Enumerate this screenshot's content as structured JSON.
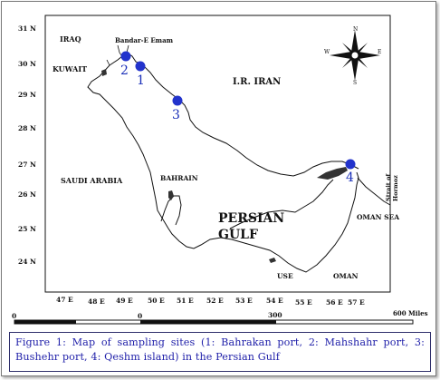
{
  "map": {
    "country_labels": {
      "iraq": "IRAQ",
      "kuwait": "KUWAIT",
      "iran": "I.R. IRAN",
      "saudi": "SAUDI ARABIA",
      "bahrain": "BAHRAIN",
      "persian_gulf_1": "PERSIAN",
      "persian_gulf_2": "GULF",
      "oman_sea": "OMAN SEA",
      "use": "USE",
      "oman": "OMAN",
      "bandar": "Bandar-E Emam",
      "strait_1": "Strait of",
      "strait_2": "Hormoz"
    },
    "lat_ticks": [
      "31 N",
      "30 N",
      "29 N",
      "28 N",
      "27 N",
      "26 N",
      "25 N",
      "24 N"
    ],
    "lon_ticks": [
      "47 E",
      "48 E",
      "49 E",
      "50 E",
      "51 E",
      "52 E",
      "53 E",
      "54 E",
      "55 E",
      "56 E",
      "57 E"
    ],
    "compass": {
      "n": "N",
      "s": "S",
      "e": "E",
      "w": "W"
    },
    "scale": {
      "zero_left": "0",
      "zero_mid": "0",
      "mid": "300",
      "end": "600 Miles"
    },
    "sites": [
      {
        "num": "1",
        "name": "Bahrakan port"
      },
      {
        "num": "2",
        "name": "Mahshahr port"
      },
      {
        "num": "3",
        "name": "Bushehr port"
      },
      {
        "num": "4",
        "name": "Qeshm island"
      }
    ],
    "site_color": "#2233cc"
  },
  "caption": "Figure 1: Map of sampling sites (1: Bahrakan port, 2: Mahshahr port, 3: Bushehr port, 4: Qeshm island) in the Persian Gulf"
}
